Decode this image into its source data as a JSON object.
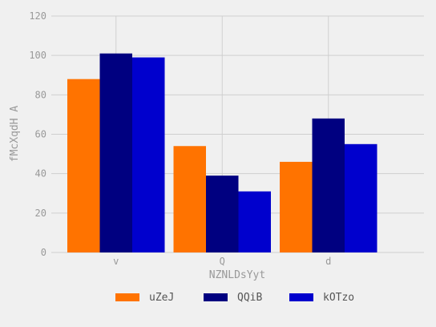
{
  "chart_data": {
    "type": "bar",
    "categories": [
      "v",
      "Q",
      "d"
    ],
    "series": [
      {
        "name": "uZeJ",
        "color": "#ff7300",
        "values": [
          88,
          54,
          46
        ]
      },
      {
        "name": "QQiB",
        "color": "#000080",
        "values": [
          101,
          39,
          68
        ]
      },
      {
        "name": "kOTzo",
        "color": "#0000cd",
        "values": [
          99,
          31,
          55
        ]
      }
    ],
    "xlabel": "NZNLDsYyt",
    "ylabel": "fMcXqdH  A",
    "ylim": [
      0,
      120
    ],
    "yticks": [
      0,
      20,
      40,
      60,
      80,
      100,
      120
    ],
    "grid": true,
    "legend_position": "bottom"
  }
}
